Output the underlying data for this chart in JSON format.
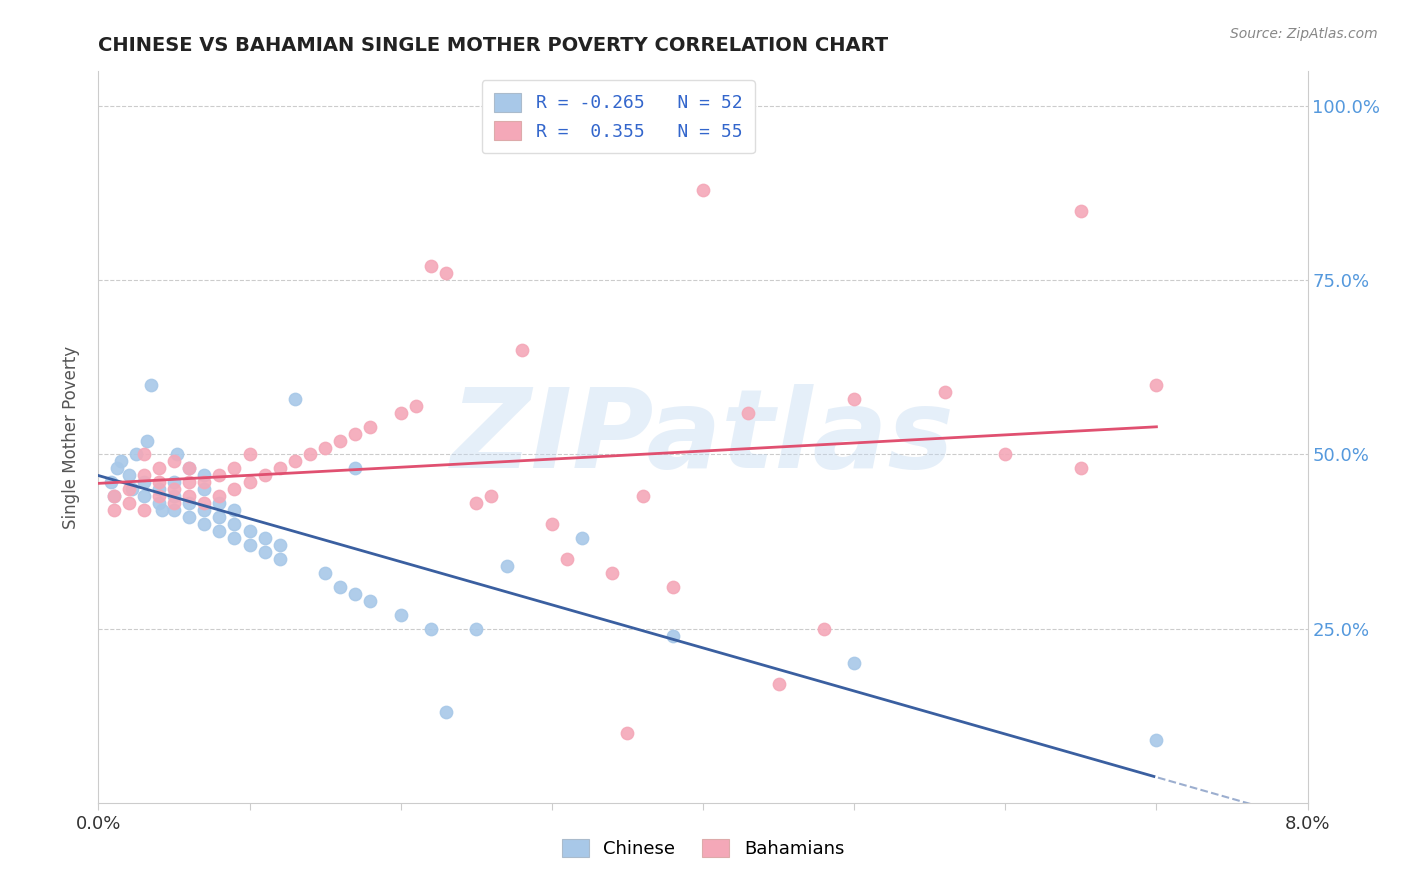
{
  "title": "CHINESE VS BAHAMIAN SINGLE MOTHER POVERTY CORRELATION CHART",
  "source": "Source: ZipAtlas.com",
  "ylabel": "Single Mother Poverty",
  "watermark": "ZIPatlas",
  "legend_r_chinese": "-0.265",
  "legend_n_chinese": "52",
  "legend_r_bahamian": "0.355",
  "legend_n_bahamian": "55",
  "chinese_color": "#a8c8e8",
  "bahamian_color": "#f4a8b8",
  "line_chinese_color": "#3a5fa0",
  "line_bahamian_color": "#e05070",
  "background_color": "#ffffff",
  "grid_color": "#cccccc",
  "chinese_points": [
    [
      0.0008,
      0.46
    ],
    [
      0.001,
      0.44
    ],
    [
      0.0012,
      0.48
    ],
    [
      0.0015,
      0.49
    ],
    [
      0.002,
      0.47
    ],
    [
      0.0022,
      0.45
    ],
    [
      0.0025,
      0.5
    ],
    [
      0.003,
      0.46
    ],
    [
      0.003,
      0.44
    ],
    [
      0.0032,
      0.52
    ],
    [
      0.0035,
      0.6
    ],
    [
      0.004,
      0.43
    ],
    [
      0.004,
      0.45
    ],
    [
      0.0042,
      0.42
    ],
    [
      0.005,
      0.42
    ],
    [
      0.005,
      0.44
    ],
    [
      0.005,
      0.46
    ],
    [
      0.0052,
      0.5
    ],
    [
      0.006,
      0.41
    ],
    [
      0.006,
      0.43
    ],
    [
      0.006,
      0.48
    ],
    [
      0.007,
      0.4
    ],
    [
      0.007,
      0.42
    ],
    [
      0.007,
      0.45
    ],
    [
      0.007,
      0.47
    ],
    [
      0.008,
      0.39
    ],
    [
      0.008,
      0.41
    ],
    [
      0.008,
      0.43
    ],
    [
      0.009,
      0.38
    ],
    [
      0.009,
      0.4
    ],
    [
      0.009,
      0.42
    ],
    [
      0.01,
      0.37
    ],
    [
      0.01,
      0.39
    ],
    [
      0.011,
      0.36
    ],
    [
      0.011,
      0.38
    ],
    [
      0.012,
      0.35
    ],
    [
      0.012,
      0.37
    ],
    [
      0.013,
      0.58
    ],
    [
      0.015,
      0.33
    ],
    [
      0.016,
      0.31
    ],
    [
      0.017,
      0.3
    ],
    [
      0.017,
      0.48
    ],
    [
      0.018,
      0.29
    ],
    [
      0.02,
      0.27
    ],
    [
      0.022,
      0.25
    ],
    [
      0.023,
      0.13
    ],
    [
      0.025,
      0.25
    ],
    [
      0.027,
      0.34
    ],
    [
      0.032,
      0.38
    ],
    [
      0.038,
      0.24
    ],
    [
      0.05,
      0.2
    ],
    [
      0.07,
      0.09
    ]
  ],
  "bahamian_points": [
    [
      0.001,
      0.42
    ],
    [
      0.001,
      0.44
    ],
    [
      0.002,
      0.43
    ],
    [
      0.002,
      0.45
    ],
    [
      0.003,
      0.42
    ],
    [
      0.003,
      0.47
    ],
    [
      0.003,
      0.5
    ],
    [
      0.004,
      0.44
    ],
    [
      0.004,
      0.46
    ],
    [
      0.004,
      0.48
    ],
    [
      0.005,
      0.43
    ],
    [
      0.005,
      0.45
    ],
    [
      0.005,
      0.49
    ],
    [
      0.006,
      0.44
    ],
    [
      0.006,
      0.46
    ],
    [
      0.006,
      0.48
    ],
    [
      0.007,
      0.43
    ],
    [
      0.007,
      0.46
    ],
    [
      0.008,
      0.44
    ],
    [
      0.008,
      0.47
    ],
    [
      0.009,
      0.45
    ],
    [
      0.009,
      0.48
    ],
    [
      0.01,
      0.46
    ],
    [
      0.01,
      0.5
    ],
    [
      0.011,
      0.47
    ],
    [
      0.012,
      0.48
    ],
    [
      0.013,
      0.49
    ],
    [
      0.014,
      0.5
    ],
    [
      0.015,
      0.51
    ],
    [
      0.016,
      0.52
    ],
    [
      0.017,
      0.53
    ],
    [
      0.018,
      0.54
    ],
    [
      0.02,
      0.56
    ],
    [
      0.021,
      0.57
    ],
    [
      0.022,
      0.77
    ],
    [
      0.023,
      0.76
    ],
    [
      0.025,
      0.43
    ],
    [
      0.026,
      0.44
    ],
    [
      0.028,
      0.65
    ],
    [
      0.03,
      0.4
    ],
    [
      0.031,
      0.35
    ],
    [
      0.034,
      0.33
    ],
    [
      0.036,
      0.44
    ],
    [
      0.038,
      0.31
    ],
    [
      0.04,
      0.88
    ],
    [
      0.043,
      0.56
    ],
    [
      0.045,
      0.17
    ],
    [
      0.048,
      0.25
    ],
    [
      0.05,
      0.58
    ],
    [
      0.056,
      0.59
    ],
    [
      0.06,
      0.5
    ],
    [
      0.065,
      0.48
    ],
    [
      0.065,
      0.85
    ],
    [
      0.07,
      0.6
    ],
    [
      0.035,
      0.1
    ]
  ],
  "xlim": [
    0.0,
    0.08
  ],
  "ylim": [
    0.0,
    1.05
  ],
  "yticks": [
    0.25,
    0.5,
    0.75,
    1.0
  ],
  "ytick_labels": [
    "25.0%",
    "50.0%",
    "75.0%",
    "100.0%"
  ]
}
